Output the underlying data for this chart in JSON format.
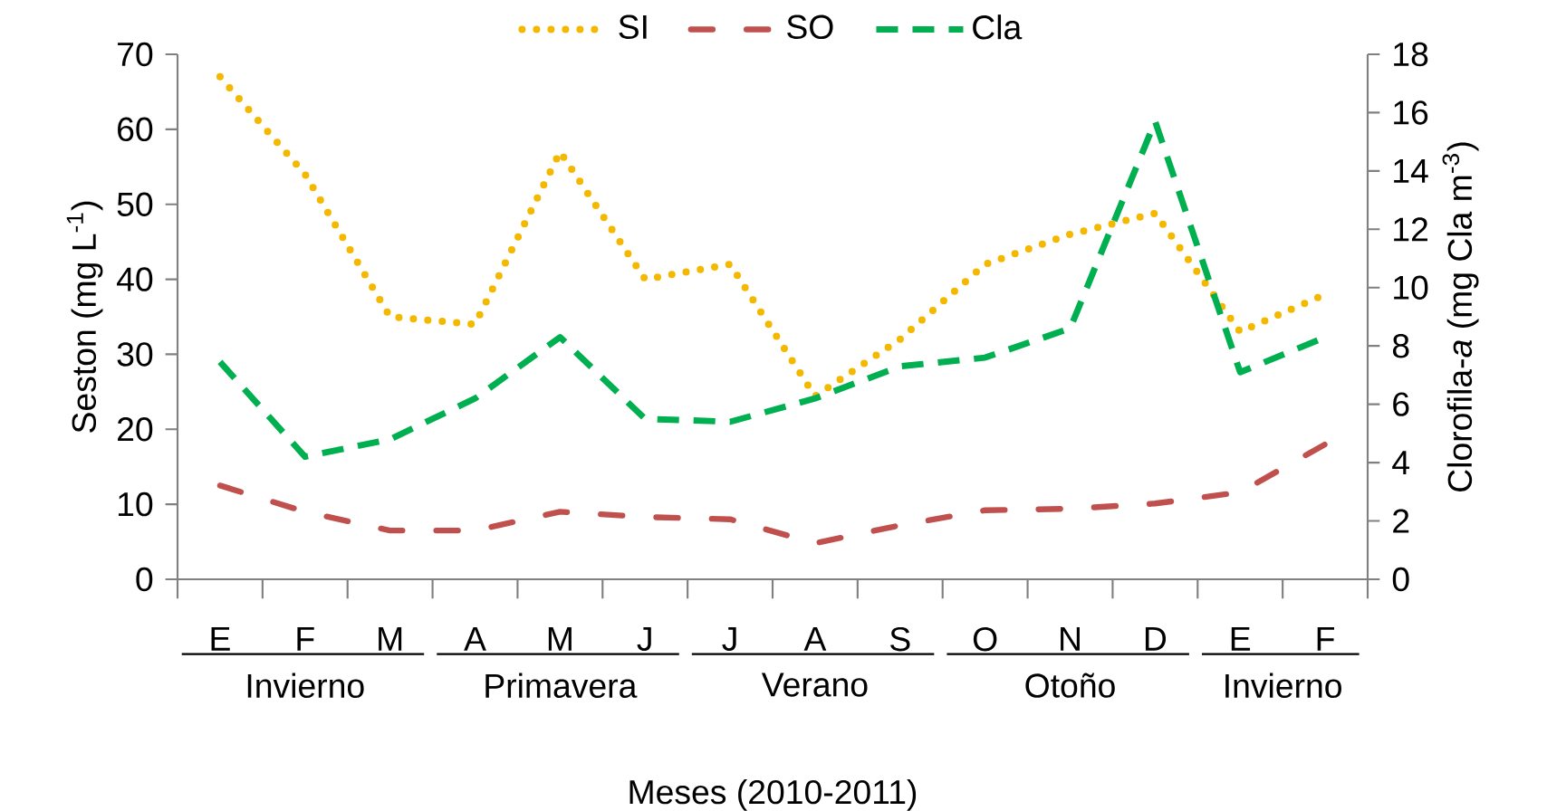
{
  "chart_data": {
    "type": "line",
    "xlabel": "Meses (2010-2011)",
    "ylabel": "Seston (mg L$^{-1}$)",
    "y2label": "Clorofila-*a* (mg Cla m$^{-3}$)",
    "categories": [
      "E",
      "F",
      "M",
      "A",
      "M",
      "J",
      "J",
      "A",
      "S",
      "O",
      "N",
      "D",
      "E",
      "F"
    ],
    "series": [
      {
        "name": "SI",
        "color": "#f5b800",
        "line_style": "dotted",
        "values": [
          67,
          54,
          35,
          34,
          57,
          40,
          42,
          24.4,
          32,
          42,
          46,
          48.8,
          33,
          38
        ]
      },
      {
        "name": "SO",
        "color": "#c0504d",
        "line_style": "dashdot",
        "values": [
          12.5,
          9,
          6.5,
          6.5,
          9,
          8.3,
          8,
          4.8,
          7.2,
          9.2,
          9.4,
          10.1,
          11.6,
          18
        ]
      },
      {
        "name": "Cla",
        "color": "#00b050",
        "line_style": "dashed",
        "axis": "y2",
        "values": [
          7.45,
          4.2,
          4.8,
          6.2,
          8.3,
          5.5,
          5.4,
          6.2,
          7.3,
          7.6,
          8.6,
          15.7,
          7.1,
          8.3
        ]
      }
    ],
    "ylim": [
      0,
      70
    ],
    "yticks": [
      0,
      10,
      20,
      30,
      40,
      50,
      60,
      70
    ],
    "y2lim": [
      0,
      18
    ],
    "y2ticks": [
      0,
      2,
      4,
      6,
      8,
      10,
      12,
      14,
      16,
      18
    ],
    "legend": "top",
    "annotations": [
      "Invierno",
      "Primavera",
      "Verano",
      "Otoño",
      "Invierno"
    ]
  }
}
